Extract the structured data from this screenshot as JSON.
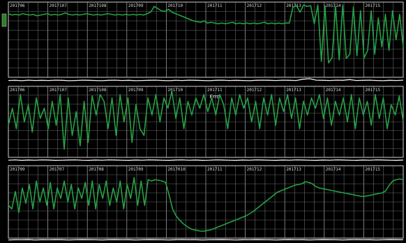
{
  "colors": {
    "background": "#000000",
    "grid": "#9a9a9a",
    "trace": "#25a244",
    "strip": "#f0f0f0",
    "label": "#d9d9d9"
  },
  "chart_data": [
    {
      "type": "line",
      "grid": true,
      "ylim": [
        0,
        100
      ],
      "tick_labels": [
        "201706",
        "2017107",
        "2017108",
        "201709",
        "201710",
        "201711",
        "201712",
        "201713",
        "201714",
        "201715"
      ],
      "annotation": "",
      "series": [
        {
          "values": [
            86,
            84,
            85,
            84,
            86,
            85,
            84,
            85,
            83,
            84,
            85,
            86,
            84,
            85,
            84,
            85,
            87,
            85,
            84,
            85,
            84,
            85,
            86,
            85,
            84,
            85,
            84,
            85,
            86,
            85,
            84,
            85,
            84,
            85,
            84,
            85,
            84,
            85,
            84,
            86,
            88,
            96,
            93,
            90,
            89,
            92,
            88,
            86,
            84,
            82,
            80,
            78,
            76,
            75,
            74,
            76,
            73,
            74,
            73,
            72,
            73,
            72,
            73,
            74,
            72,
            73,
            72,
            73,
            72,
            73,
            72,
            73,
            74,
            72,
            73,
            72,
            73,
            72,
            73,
            73,
            95,
            97,
            88,
            98,
            96,
            97,
            72,
            98,
            20,
            97,
            18,
            25,
            96,
            22,
            98,
            24,
            30,
            95,
            28,
            90,
            25,
            35,
            90,
            30,
            80,
            40,
            85,
            35,
            90,
            50,
            85,
            40
          ]
        }
      ],
      "strip": [
        28,
        29,
        27,
        30,
        28,
        29,
        28,
        30,
        29,
        27,
        28,
        30,
        29,
        28,
        27,
        29,
        30,
        28,
        29,
        27,
        28,
        29,
        30,
        28,
        27,
        29,
        28,
        30,
        29,
        28,
        27,
        29,
        30,
        28,
        29,
        28,
        27,
        29,
        30,
        29,
        28,
        30,
        29,
        28,
        35,
        38,
        30,
        29,
        28,
        30,
        29,
        33,
        28,
        29,
        30,
        28,
        27,
        29,
        28,
        30
      ]
    },
    {
      "type": "line",
      "grid": true,
      "ylim": [
        0,
        100
      ],
      "tick_labels": [
        "201706",
        "2017107",
        "2017108",
        "201709",
        "201710",
        "201711",
        "201712",
        "201713",
        "201714",
        "201715"
      ],
      "annotation": "Erro",
      "series": [
        {
          "values": [
            45,
            70,
            40,
            90,
            50,
            75,
            35,
            85,
            55,
            70,
            40,
            80,
            45,
            90,
            10,
            85,
            30,
            65,
            15,
            80,
            20,
            88,
            60,
            90,
            80,
            40,
            85,
            30,
            90,
            50,
            85,
            20,
            75,
            40,
            30,
            85,
            60,
            90,
            50,
            85,
            70,
            95,
            55,
            85,
            40,
            80,
            60,
            85,
            70,
            90,
            65,
            85,
            60,
            90,
            75,
            40,
            85,
            60,
            90,
            70,
            85,
            50,
            80,
            40,
            85,
            60,
            90,
            45,
            85,
            65,
            90,
            55,
            85,
            40,
            80,
            60,
            85,
            70,
            90,
            55,
            85,
            45,
            80,
            60,
            85,
            50,
            90,
            40,
            85,
            60,
            80,
            45,
            90,
            55,
            85,
            40,
            75,
            60,
            88,
            50
          ]
        }
      ],
      "strip": [
        30,
        32,
        29,
        31,
        30,
        32,
        31,
        29,
        30,
        31,
        32,
        30,
        29,
        31,
        30,
        32,
        31,
        30,
        29,
        31,
        30,
        32,
        31,
        30,
        29,
        31,
        32,
        30,
        31,
        29,
        30,
        32,
        31,
        30,
        29,
        31,
        30,
        32,
        31,
        30,
        29,
        31,
        30,
        32,
        31,
        30,
        29,
        31,
        30,
        32,
        31,
        30,
        29,
        31,
        30,
        32,
        31,
        30,
        29,
        31
      ]
    },
    {
      "type": "line",
      "grid": true,
      "ylim": [
        0,
        100
      ],
      "tick_labels": [
        "201709",
        "201707",
        "201708",
        "201709",
        "2017010",
        "201711",
        "201712",
        "201713",
        "201714",
        "201715"
      ],
      "annotation": "",
      "series": [
        {
          "values": [
            45,
            40,
            65,
            35,
            70,
            48,
            75,
            40,
            80,
            50,
            70,
            45,
            78,
            40,
            70,
            55,
            80,
            50,
            75,
            40,
            70,
            55,
            78,
            45,
            80,
            40,
            75,
            55,
            80,
            45,
            70,
            50,
            80,
            40,
            75,
            55,
            85,
            45,
            80,
            45,
            82,
            80,
            82,
            81,
            80,
            78,
            60,
            40,
            30,
            24,
            19,
            15,
            12,
            10,
            9,
            8,
            8,
            9,
            10,
            12,
            14,
            16,
            18,
            20,
            22,
            24,
            26,
            28,
            30,
            33,
            36,
            40,
            44,
            48,
            52,
            56,
            60,
            64,
            66,
            68,
            70,
            72,
            74,
            75,
            76,
            79,
            78,
            76,
            72,
            70,
            69,
            68,
            67,
            66,
            65,
            64,
            63,
            62,
            61,
            60,
            59,
            58,
            58,
            59,
            60,
            61,
            62,
            63,
            66,
            74,
            80,
            82,
            83,
            82
          ]
        }
      ],
      "strip": [
        26,
        28,
        27,
        29,
        26,
        28,
        27,
        29,
        28,
        26,
        27,
        29,
        28,
        27,
        26,
        28,
        29,
        27,
        28,
        26,
        27,
        29,
        28,
        27,
        26,
        28,
        29,
        27,
        28,
        26,
        27,
        28,
        29,
        27,
        26,
        28,
        27,
        29,
        28,
        27,
        26,
        28,
        29,
        27,
        28,
        26,
        27,
        29,
        28,
        27,
        26,
        28,
        29,
        27,
        28,
        26,
        27,
        29,
        28,
        27
      ]
    }
  ]
}
